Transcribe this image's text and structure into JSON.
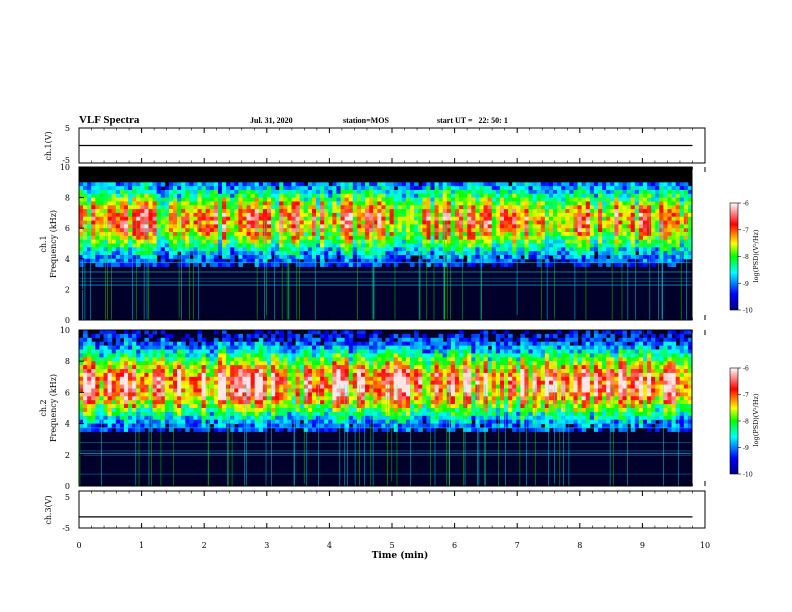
{
  "header": {
    "title": "VLF Spectra",
    "date": "Jul. 31, 2020",
    "station": "station=MOS",
    "start": "start UT =   22: 50: 1"
  },
  "chart_data": [
    {
      "type": "line",
      "ylabel": "ch.1(V)",
      "ylim": [
        -5,
        5
      ],
      "yticks": [
        "5",
        "-5"
      ],
      "x": [
        0,
        9.8
      ],
      "values": [
        0.0,
        0.0
      ]
    },
    {
      "type": "heatmap",
      "ylabel": "ch.1",
      "ylabel2": "Frequency (kHz)",
      "ylim": [
        0,
        10
      ],
      "yticks": [
        "0",
        "2",
        "4",
        "6",
        "8",
        "10"
      ],
      "colorbar": {
        "label": "log(PSD)(V²/Hz)",
        "ticks": [
          "-6",
          "-7",
          "-8",
          "-9",
          "-10"
        ],
        "range": [
          -10,
          -6
        ]
      },
      "band_center_khz": 6.5
    },
    {
      "type": "heatmap",
      "ylabel": "ch.2",
      "ylabel2": "Frequency (kHz)",
      "ylim": [
        0,
        10
      ],
      "yticks": [
        "0",
        "2",
        "4",
        "6",
        "8",
        "10"
      ],
      "colorbar": {
        "label": "log(PSD)(V²/Hz)",
        "ticks": [
          "-6",
          "-7",
          "-8",
          "-9",
          "-10"
        ],
        "range": [
          -10,
          -6
        ]
      },
      "band_center_khz": 6.5
    },
    {
      "type": "line",
      "ylabel": "ch.3(V)",
      "ylim": [
        -5,
        5
      ],
      "yticks": [
        "5",
        "-5"
      ],
      "x": [
        0,
        9.8
      ],
      "values": [
        -2.0,
        -2.0
      ]
    }
  ],
  "xaxis": {
    "label": "Time (min)",
    "ticks": [
      "0",
      "1",
      "2",
      "3",
      "4",
      "5",
      "6",
      "7",
      "8",
      "9",
      "10"
    ],
    "xlim": [
      0,
      10
    ]
  },
  "colors": {
    "colormap": [
      "#000080",
      "#0000ff",
      "#00ffff",
      "#00ff00",
      "#ffff00",
      "#ff0000",
      "#ffffff"
    ],
    "background_dark": "#00002a"
  }
}
